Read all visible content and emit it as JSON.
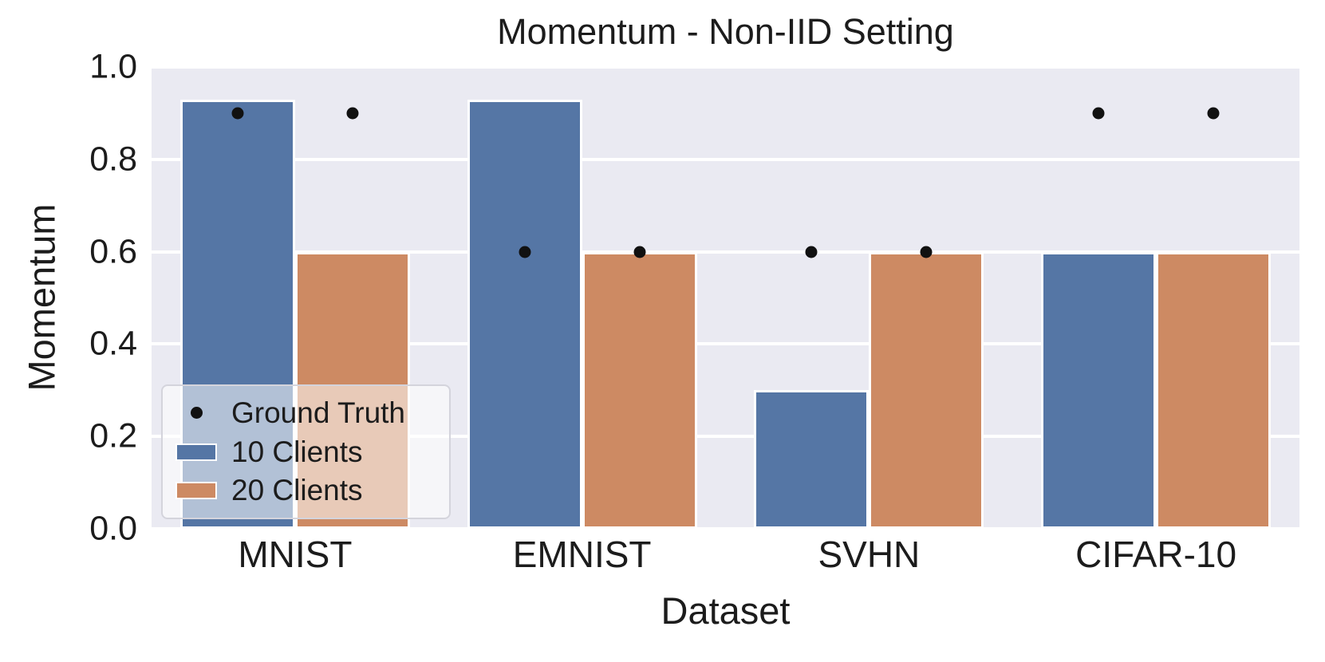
{
  "chart_data": {
    "type": "bar",
    "title": "Momentum - Non-IID Setting",
    "xlabel": "Dataset",
    "ylabel": "Momentum",
    "categories": [
      "MNIST",
      "EMNIST",
      "SVHN",
      "CIFAR-10"
    ],
    "series": [
      {
        "name": "10 Clients",
        "color": "#5576A5",
        "values": [
          0.93,
          0.93,
          0.3,
          0.6
        ]
      },
      {
        "name": "20 Clients",
        "color": "#CD8A63",
        "values": [
          0.6,
          0.6,
          0.6,
          0.6
        ]
      }
    ],
    "ground_truth": {
      "name": "Ground Truth",
      "color": "#111111",
      "marker": "dot",
      "series": [
        {
          "name": "10 Clients",
          "values": [
            0.9,
            0.6,
            0.6,
            0.9
          ]
        },
        {
          "name": "20 Clients",
          "values": [
            0.9,
            0.6,
            0.6,
            0.9
          ]
        }
      ]
    },
    "ylim": [
      0.0,
      1.0
    ],
    "yticks": [
      1.0,
      0.8,
      0.6,
      0.4,
      0.2,
      0.0
    ],
    "grid": true,
    "plot_background": "#EAEAF2",
    "gridline_color": "#FFFFFF",
    "legend": {
      "position": "lower-left",
      "entries": [
        "Ground Truth",
        "10 Clients",
        "20 Clients"
      ]
    }
  }
}
